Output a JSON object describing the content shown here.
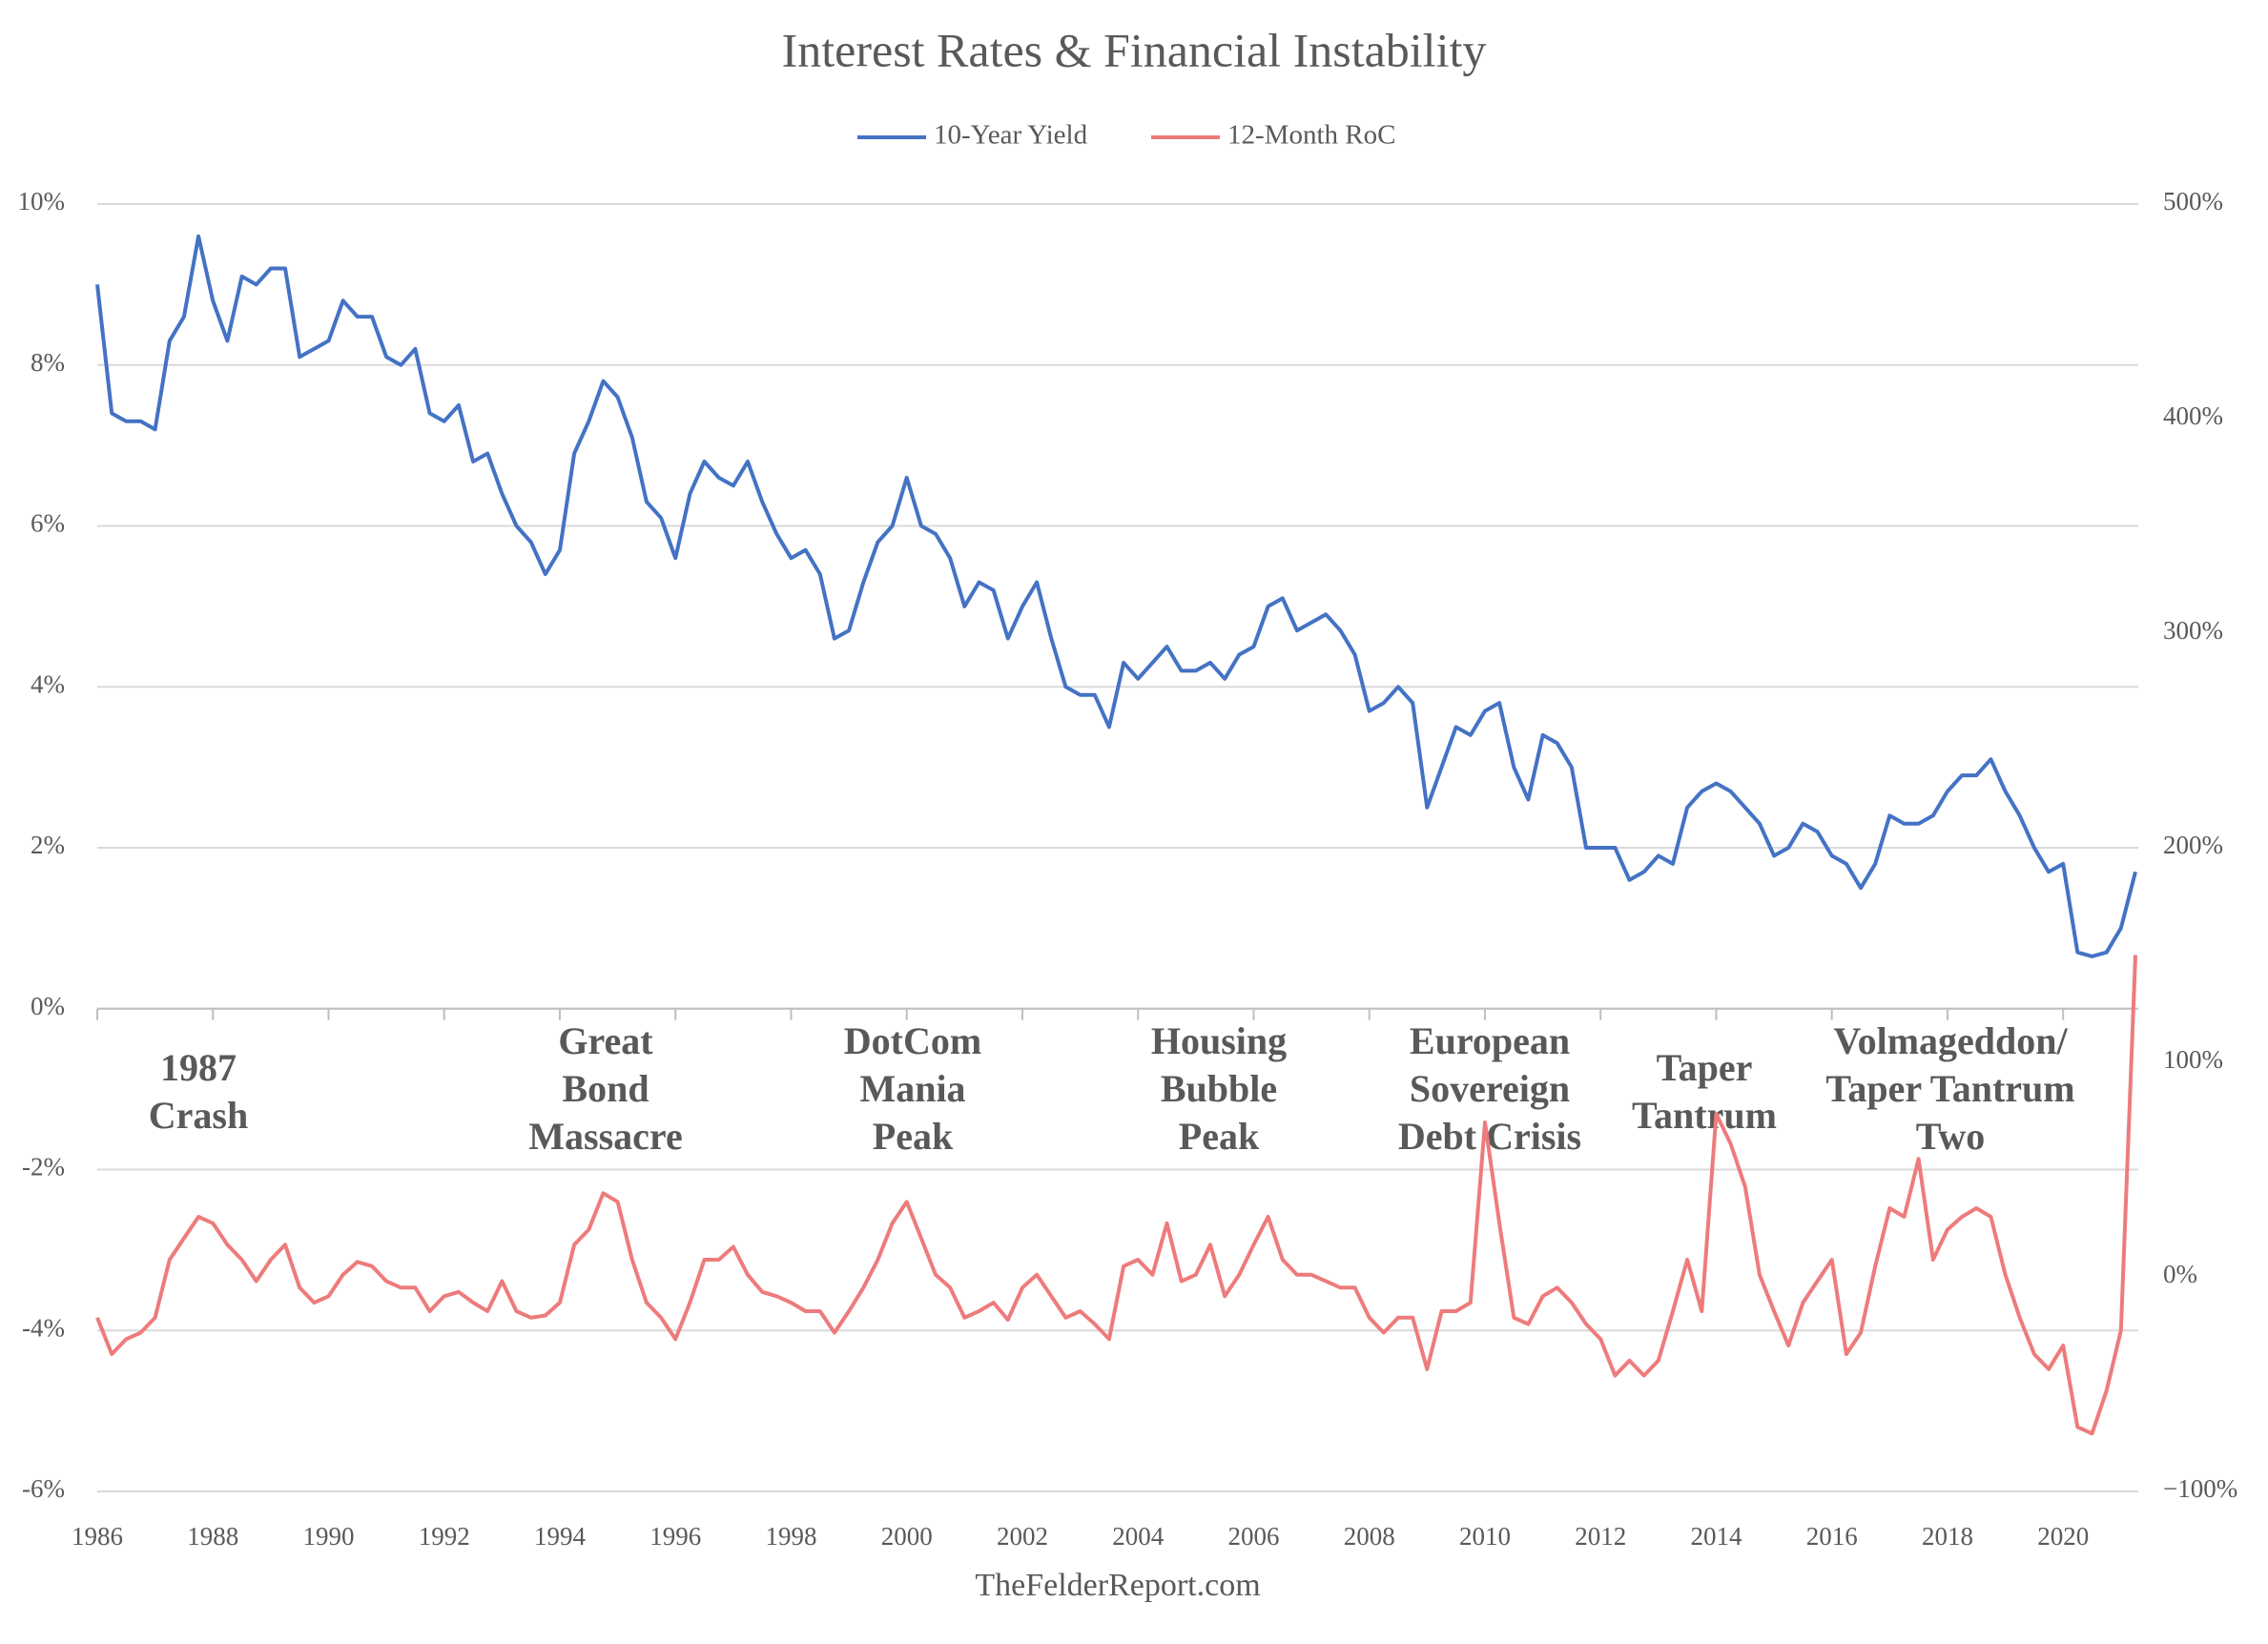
{
  "chart_data": {
    "type": "line",
    "title": "Interest Rates & Financial Instability",
    "source": "TheFelderReport.com",
    "legend": "top",
    "grid": true,
    "x": [
      1986,
      1986.25,
      1986.5,
      1986.75,
      1987,
      1987.25,
      1987.5,
      1987.75,
      1988,
      1988.25,
      1988.5,
      1988.75,
      1989,
      1989.25,
      1989.5,
      1989.75,
      1990,
      1990.25,
      1990.5,
      1990.75,
      1991,
      1991.25,
      1991.5,
      1991.75,
      1992,
      1992.25,
      1992.5,
      1992.75,
      1993,
      1993.25,
      1993.5,
      1993.75,
      1994,
      1994.25,
      1994.5,
      1994.75,
      1995,
      1995.25,
      1995.5,
      1995.75,
      1996,
      1996.25,
      1996.5,
      1996.75,
      1997,
      1997.25,
      1997.5,
      1997.75,
      1998,
      1998.25,
      1998.5,
      1998.75,
      1999,
      1999.25,
      1999.5,
      1999.75,
      2000,
      2000.25,
      2000.5,
      2000.75,
      2001,
      2001.25,
      2001.5,
      2001.75,
      2002,
      2002.25,
      2002.5,
      2002.75,
      2003,
      2003.25,
      2003.5,
      2003.75,
      2004,
      2004.25,
      2004.5,
      2004.75,
      2005,
      2005.25,
      2005.5,
      2005.75,
      2006,
      2006.25,
      2006.5,
      2006.75,
      2007,
      2007.25,
      2007.5,
      2007.75,
      2008,
      2008.25,
      2008.5,
      2008.75,
      2009,
      2009.25,
      2009.5,
      2009.75,
      2010,
      2010.25,
      2010.5,
      2010.75,
      2011,
      2011.25,
      2011.5,
      2011.75,
      2012,
      2012.25,
      2012.5,
      2012.75,
      2013,
      2013.25,
      2013.5,
      2013.75,
      2014,
      2014.25,
      2014.5,
      2014.75,
      2015,
      2015.25,
      2015.5,
      2015.75,
      2016,
      2016.25,
      2016.5,
      2016.75,
      2017,
      2017.25,
      2017.5,
      2017.75,
      2018,
      2018.25,
      2018.5,
      2018.75,
      2019,
      2019.25,
      2019.5,
      2019.75,
      2020,
      2020.25,
      2020.5,
      2020.75,
      2021,
      2021.25
    ],
    "xlim": [
      1986,
      2021.3
    ],
    "xticks": [
      1986,
      1988,
      1990,
      1992,
      1994,
      1996,
      1998,
      2000,
      2002,
      2004,
      2006,
      2008,
      2010,
      2012,
      2014,
      2016,
      2018,
      2020
    ],
    "ylim": [
      -6,
      10
    ],
    "yticks": [
      {
        "value": -6,
        "label": "-6%"
      },
      {
        "value": -4,
        "label": "-4%"
      },
      {
        "value": -2,
        "label": "-2%"
      },
      {
        "value": 0,
        "label": "0%"
      },
      {
        "value": 2,
        "label": "2%"
      },
      {
        "value": 4,
        "label": "4%"
      },
      {
        "value": 6,
        "label": "6%"
      },
      {
        "value": 8,
        "label": "8%"
      },
      {
        "value": 10,
        "label": "10%"
      }
    ],
    "y2lim": [
      -100,
      500
    ],
    "y2ticks": [
      {
        "value": -100,
        "label": "−100%"
      },
      {
        "value": 0,
        "label": "0%"
      },
      {
        "value": 100,
        "label": "100%"
      },
      {
        "value": 200,
        "label": "200%"
      },
      {
        "value": 300,
        "label": "300%"
      },
      {
        "value": 400,
        "label": "400%"
      },
      {
        "value": 500,
        "label": "500%"
      }
    ],
    "series": [
      {
        "name": "10-Year Yield",
        "color": "#4472c4",
        "values": [
          9.0,
          7.4,
          7.3,
          7.3,
          7.2,
          8.3,
          8.6,
          9.6,
          8.8,
          8.3,
          9.1,
          9.0,
          9.2,
          9.2,
          8.1,
          8.2,
          8.3,
          8.8,
          8.6,
          8.6,
          8.1,
          8.0,
          8.2,
          7.4,
          7.3,
          7.5,
          6.8,
          6.9,
          6.4,
          6.0,
          5.8,
          5.4,
          5.7,
          6.9,
          7.3,
          7.8,
          7.6,
          7.1,
          6.3,
          6.1,
          5.6,
          6.4,
          6.8,
          6.6,
          6.5,
          6.8,
          6.3,
          5.9,
          5.6,
          5.7,
          5.4,
          4.6,
          4.7,
          5.3,
          5.8,
          6.0,
          6.6,
          6.0,
          5.9,
          5.6,
          5.0,
          5.3,
          5.2,
          4.6,
          5.0,
          5.3,
          4.6,
          4.0,
          3.9,
          3.9,
          3.5,
          4.3,
          4.1,
          4.3,
          4.5,
          4.2,
          4.2,
          4.3,
          4.1,
          4.4,
          4.5,
          5.0,
          5.1,
          4.7,
          4.8,
          4.9,
          4.7,
          4.4,
          3.7,
          3.8,
          4.0,
          3.8,
          2.5,
          3.0,
          3.5,
          3.4,
          3.7,
          3.8,
          3.0,
          2.6,
          3.4,
          3.3,
          3.0,
          2.0,
          2.0,
          2.0,
          1.6,
          1.7,
          1.9,
          1.8,
          2.5,
          2.7,
          2.8,
          2.7,
          2.5,
          2.3,
          1.9,
          2.0,
          2.3,
          2.2,
          1.9,
          1.8,
          1.5,
          1.8,
          2.4,
          2.3,
          2.3,
          2.4,
          2.7,
          2.9,
          2.9,
          3.1,
          2.7,
          2.4,
          2.0,
          1.7,
          1.8,
          0.7,
          0.65,
          0.7,
          1.0,
          1.7
        ]
      },
      {
        "name": "12-Month RoC",
        "color": "#ee7b7b",
        "axis": "y2",
        "values": [
          -19,
          -36,
          -29,
          -26,
          -19,
          8,
          18,
          28,
          25,
          15,
          8,
          -2,
          8,
          15,
          -5,
          -12,
          -9,
          1,
          7,
          5,
          -2,
          -5,
          -5,
          -16,
          -9,
          -7,
          -12,
          -16,
          -2,
          -16,
          -19,
          -18,
          -12,
          15,
          22,
          39,
          35,
          8,
          -12,
          -19,
          -29,
          -12,
          8,
          8,
          14,
          1,
          -7,
          -9,
          -12,
          -16,
          -16,
          -26,
          -16,
          -5,
          8,
          25,
          35,
          18,
          1,
          -5,
          -19,
          -16,
          -12,
          -20,
          -5,
          1,
          -9,
          -19,
          -16,
          -22,
          -29,
          5,
          8,
          1,
          25,
          -2,
          1,
          15,
          -9,
          1,
          15,
          28,
          8,
          1,
          1,
          -2,
          -5,
          -5,
          -19,
          -26,
          -19,
          -19,
          -43,
          -16,
          -16,
          -12,
          72,
          25,
          -19,
          -22,
          -9,
          -5,
          -12,
          -22,
          -29,
          -46,
          -39,
          -46,
          -39,
          -16,
          8,
          -16,
          76,
          62,
          42,
          1,
          -16,
          -32,
          -12,
          -2,
          8,
          -36,
          -26,
          5,
          32,
          28,
          55,
          8,
          22,
          28,
          32,
          28,
          1,
          -19,
          -36,
          -43,
          -32,
          -70,
          -73,
          -53,
          -25,
          150
        ]
      }
    ],
    "annotations": [
      {
        "lines": [
          "1987",
          "Crash"
        ]
      },
      {
        "lines": [
          "Great",
          "Bond",
          "Massacre"
        ]
      },
      {
        "lines": [
          "DotCom",
          "Mania",
          "Peak"
        ]
      },
      {
        "lines": [
          "Housing",
          "Bubble",
          "Peak"
        ]
      },
      {
        "lines": [
          "European",
          "Sovereign",
          "Debt Crisis"
        ]
      },
      {
        "lines": [
          "Taper",
          "Tantrum"
        ]
      },
      {
        "lines": [
          "Volmageddon/",
          "Taper Tantrum",
          "Two"
        ]
      }
    ]
  }
}
